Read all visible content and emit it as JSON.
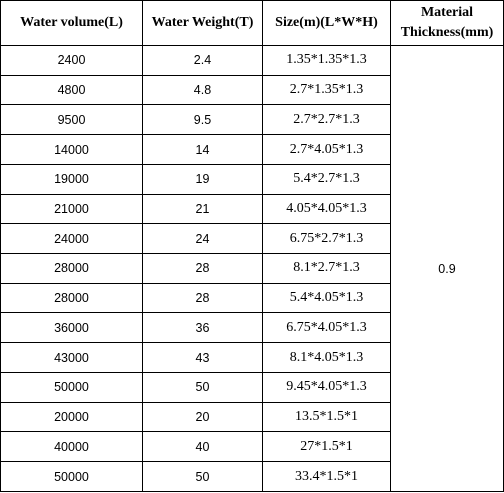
{
  "table": {
    "headers": [
      "Water volume(L)",
      "Water Weight(T)",
      "Size(m)(L*W*H)",
      "Material Thickness(mm)"
    ],
    "thickness": "0.9",
    "rows": [
      {
        "volume": "2400",
        "weight": "2.4",
        "size": "1.35*1.35*1.3"
      },
      {
        "volume": "4800",
        "weight": "4.8",
        "size": "2.7*1.35*1.3"
      },
      {
        "volume": "9500",
        "weight": "9.5",
        "size": "2.7*2.7*1.3"
      },
      {
        "volume": "14000",
        "weight": "14",
        "size": "2.7*4.05*1.3"
      },
      {
        "volume": "19000",
        "weight": "19",
        "size": "5.4*2.7*1.3"
      },
      {
        "volume": "21000",
        "weight": "21",
        "size": "4.05*4.05*1.3"
      },
      {
        "volume": "24000",
        "weight": "24",
        "size": "6.75*2.7*1.3"
      },
      {
        "volume": "28000",
        "weight": "28",
        "size": "8.1*2.7*1.3"
      },
      {
        "volume": "28000",
        "weight": "28",
        "size": "5.4*4.05*1.3"
      },
      {
        "volume": "36000",
        "weight": "36",
        "size": "6.75*4.05*1.3"
      },
      {
        "volume": "43000",
        "weight": "43",
        "size": "8.1*4.05*1.3"
      },
      {
        "volume": "50000",
        "weight": "50",
        "size": "9.45*4.05*1.3"
      },
      {
        "volume": "20000",
        "weight": "20",
        "size": "13.5*1.5*1"
      },
      {
        "volume": "40000",
        "weight": "40",
        "size": "27*1.5*1"
      },
      {
        "volume": "50000",
        "weight": "50",
        "size": "33.4*1.5*1"
      }
    ]
  }
}
